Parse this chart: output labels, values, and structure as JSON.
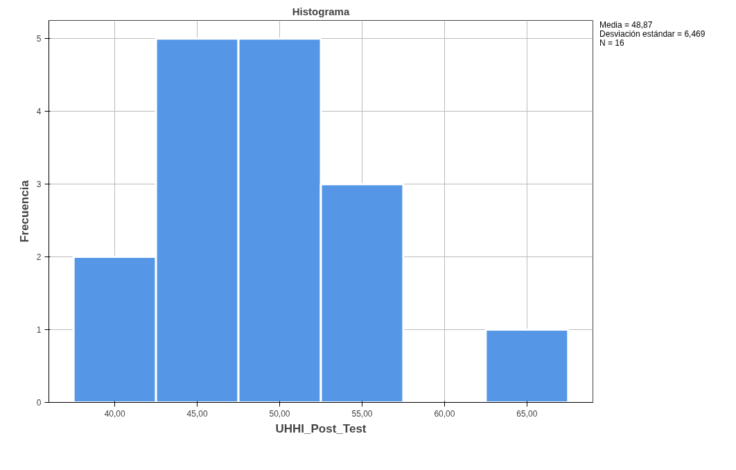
{
  "chart_data": {
    "type": "histogram",
    "title": "Histograma",
    "xlabel": "UHHI_Post_Test",
    "ylabel": "Frecuencia",
    "bins": [
      37.5,
      42.5,
      47.5,
      52.5,
      57.5,
      62.5,
      67.5
    ],
    "values": [
      2,
      5,
      5,
      3,
      0,
      1
    ],
    "color": "#5596e6",
    "xlim": [
      36,
      69
    ],
    "xticks": [
      {
        "value": 40,
        "label": "40,00"
      },
      {
        "value": 45,
        "label": "45,00"
      },
      {
        "value": 50,
        "label": "50,00"
      },
      {
        "value": 55,
        "label": "55,00"
      },
      {
        "value": 60,
        "label": "60,00"
      },
      {
        "value": 65,
        "label": "65,00"
      }
    ],
    "ylim": [
      0,
      5.25
    ],
    "yticks": [
      0,
      1,
      2,
      3,
      4,
      5
    ],
    "grid": true,
    "annotations": [
      "Media = 48,87",
      "Desviación estándar = 6,469",
      "N = 16"
    ]
  }
}
